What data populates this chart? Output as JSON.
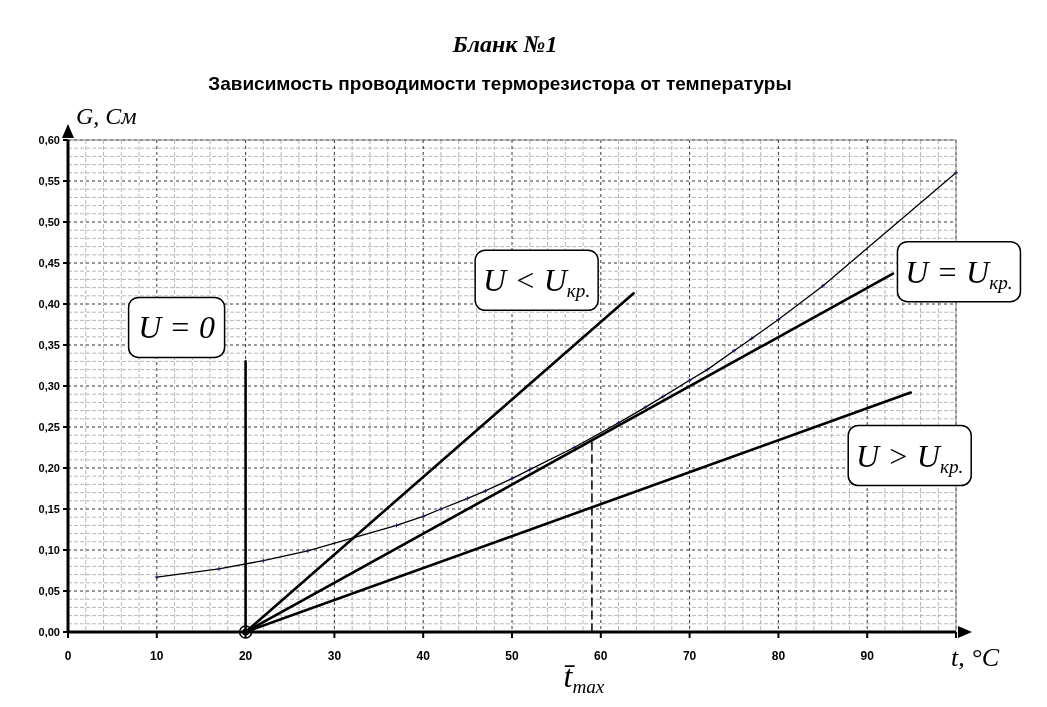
{
  "chart_data": {
    "type": "line",
    "title": "Бланк №1",
    "subtitle": "Зависимость проводимости терморезистора от температуры",
    "xlabel": "t, °C",
    "ylabel": "G, См",
    "xlim": [
      0,
      100
    ],
    "xticks": [
      0,
      10,
      20,
      30,
      40,
      50,
      60,
      70,
      80,
      90,
      {
        "value": 100,
        "label": null
      }
    ],
    "ylim": [
      0,
      0.6
    ],
    "yticks": [
      {
        "value": 0,
        "label": "0,00"
      },
      {
        "value": 0.05,
        "label": "0,05"
      },
      {
        "value": 0.1,
        "label": "0,10"
      },
      {
        "value": 0.15,
        "label": "0,15"
      },
      {
        "value": 0.2,
        "label": "0,20"
      },
      {
        "value": 0.25,
        "label": "0,25"
      },
      {
        "value": 0.3,
        "label": "0,30"
      },
      {
        "value": 0.35,
        "label": "0,35"
      },
      {
        "value": 0.4,
        "label": "0,40"
      },
      {
        "value": 0.45,
        "label": "0,45"
      },
      {
        "value": 0.5,
        "label": "0,50"
      },
      {
        "value": 0.55,
        "label": "0,55"
      },
      {
        "value": 0.6,
        "label": "0,60"
      }
    ],
    "grid": true,
    "series": [
      {
        "color": "#000000",
        "marker": "cross",
        "x": [
          10,
          17,
          22,
          27,
          37,
          40,
          42,
          45,
          47,
          50,
          52,
          57,
          62,
          65,
          67,
          70,
          72,
          75,
          77,
          80,
          85,
          100
        ],
        "values": [
          0.067,
          0.077,
          0.087,
          0.099,
          0.13,
          0.141,
          0.15,
          0.163,
          0.172,
          0.187,
          0.198,
          0.225,
          0.255,
          0.274,
          0.287,
          0.307,
          0.32,
          0.343,
          0.358,
          0.381,
          0.422,
          0.56
        ]
      },
      {
        "name": "U = 0",
        "color": "#000000",
        "x": [
          20,
          20
        ],
        "values": [
          0,
          0.33
        ]
      },
      {
        "name": "U < U$_{кр.}$",
        "color": "#000000",
        "x": [
          20,
          63.7
        ],
        "values": [
          0,
          0.413
        ]
      },
      {
        "name": "U = U$_{кр.}$",
        "color": "#000000",
        "x": [
          20,
          92.9
        ],
        "values": [
          0,
          0.437
        ]
      },
      {
        "name": "U > U$_{кр.}$",
        "color": "#000000",
        "x": [
          20,
          94.9
        ],
        "values": [
          0,
          0.292
        ]
      },
      {
        "color": "#000000",
        "line_style": "dashed",
        "x": [
          59,
          59
        ],
        "values": [
          0,
          0.234
        ]
      },
      {
        "type": "scatter",
        "color": "#000000",
        "marker": "circle",
        "x": [
          20
        ],
        "values": [
          0
        ]
      }
    ],
    "annotations": [
      {
        "text": "t̄$_{max}$",
        "x": 59,
        "y": 0
      }
    ]
  }
}
